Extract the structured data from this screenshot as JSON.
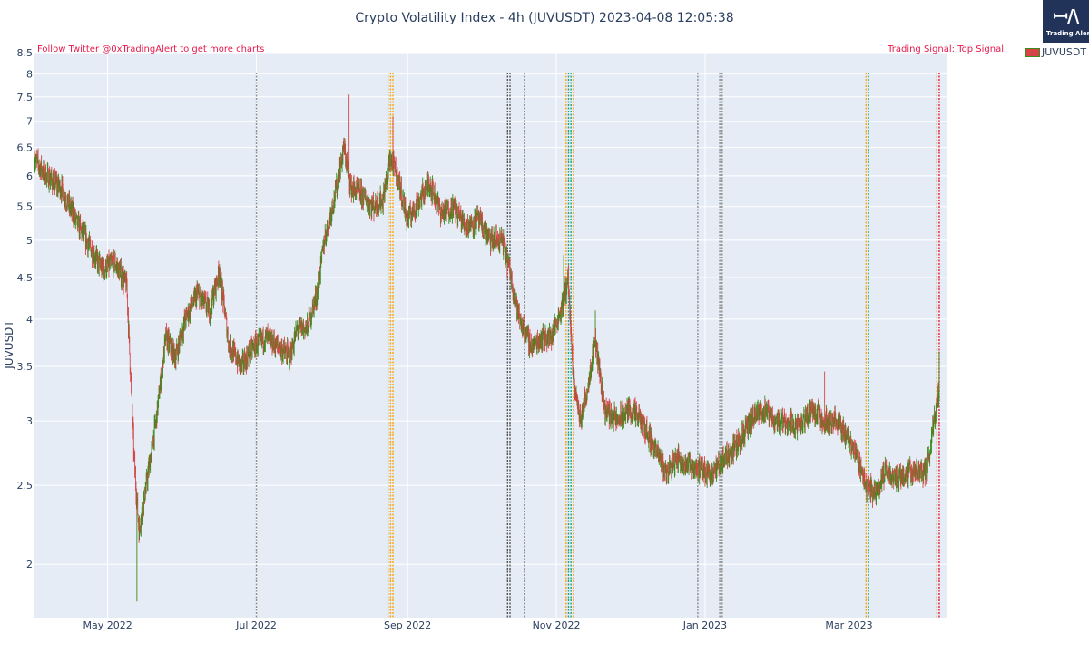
{
  "chart_data": {
    "type": "candlestick",
    "title": "Crypto Volatility Index - 4h (JUVUSDT) 2023-04-08 12:05:38",
    "ylabel": "JUVUSDT",
    "yscale": "log",
    "ylim": [
      1.72,
      8.5
    ],
    "y_ticks": [
      2,
      2.5,
      3,
      3.5,
      4,
      4.5,
      5,
      5.5,
      6,
      6.5,
      7,
      7.5,
      8,
      8.5
    ],
    "xlim": [
      "2022-04-01",
      "2023-04-10"
    ],
    "x_ticks": [
      {
        "date": "2022-05-01",
        "label": "May 2022"
      },
      {
        "date": "2022-07-01",
        "label": "Jul 2022"
      },
      {
        "date": "2022-09-01",
        "label": "Sep 2022"
      },
      {
        "date": "2022-11-01",
        "label": "Nov 2022"
      },
      {
        "date": "2023-01-01",
        "label": "Jan 2023"
      },
      {
        "date": "2023-03-01",
        "label": "Mar 2023"
      }
    ],
    "series": [
      {
        "name": "JUVUSDT",
        "price_path": [
          [
            "2022-04-01",
            6.3
          ],
          [
            "2022-04-06",
            6.0
          ],
          [
            "2022-04-12",
            5.8
          ],
          [
            "2022-04-18",
            5.3
          ],
          [
            "2022-04-24",
            4.9
          ],
          [
            "2022-04-29",
            4.6
          ],
          [
            "2022-05-04",
            4.7
          ],
          [
            "2022-05-09",
            4.4
          ],
          [
            "2022-05-12",
            2.7
          ],
          [
            "2022-05-14",
            2.2
          ],
          [
            "2022-05-17",
            2.5
          ],
          [
            "2022-05-21",
            3.0
          ],
          [
            "2022-05-25",
            3.8
          ],
          [
            "2022-05-29",
            3.6
          ],
          [
            "2022-06-02",
            4.0
          ],
          [
            "2022-06-07",
            4.3
          ],
          [
            "2022-06-12",
            4.1
          ],
          [
            "2022-06-16",
            4.6
          ],
          [
            "2022-06-20",
            3.7
          ],
          [
            "2022-06-25",
            3.5
          ],
          [
            "2022-06-30",
            3.7
          ],
          [
            "2022-07-05",
            3.8
          ],
          [
            "2022-07-10",
            3.7
          ],
          [
            "2022-07-15",
            3.6
          ],
          [
            "2022-07-18",
            3.9
          ],
          [
            "2022-07-22",
            3.9
          ],
          [
            "2022-07-26",
            4.3
          ],
          [
            "2022-07-29",
            5.0
          ],
          [
            "2022-08-03",
            5.8
          ],
          [
            "2022-08-06",
            6.5
          ],
          [
            "2022-08-09",
            5.8
          ],
          [
            "2022-08-13",
            5.7
          ],
          [
            "2022-08-18",
            5.5
          ],
          [
            "2022-08-22",
            5.6
          ],
          [
            "2022-08-25",
            6.3
          ],
          [
            "2022-08-28",
            6.0
          ],
          [
            "2022-09-01",
            5.3
          ],
          [
            "2022-09-06",
            5.6
          ],
          [
            "2022-09-10",
            5.9
          ],
          [
            "2022-09-15",
            5.4
          ],
          [
            "2022-09-20",
            5.5
          ],
          [
            "2022-09-25",
            5.2
          ],
          [
            "2022-09-30",
            5.3
          ],
          [
            "2022-10-05",
            5.0
          ],
          [
            "2022-10-10",
            5.0
          ],
          [
            "2022-10-13",
            4.6
          ],
          [
            "2022-10-17",
            4.0
          ],
          [
            "2022-10-22",
            3.7
          ],
          [
            "2022-10-26",
            3.8
          ],
          [
            "2022-10-30",
            3.8
          ],
          [
            "2022-11-03",
            4.1
          ],
          [
            "2022-11-06",
            4.5
          ],
          [
            "2022-11-08",
            3.4
          ],
          [
            "2022-11-11",
            3.0
          ],
          [
            "2022-11-14",
            3.3
          ],
          [
            "2022-11-17",
            3.8
          ],
          [
            "2022-11-21",
            3.1
          ],
          [
            "2022-11-26",
            3.0
          ],
          [
            "2022-12-01",
            3.1
          ],
          [
            "2022-12-06",
            3.0
          ],
          [
            "2022-12-11",
            2.8
          ],
          [
            "2022-12-16",
            2.6
          ],
          [
            "2022-12-21",
            2.7
          ],
          [
            "2022-12-26",
            2.65
          ],
          [
            "2023-01-01",
            2.6
          ],
          [
            "2023-01-05",
            2.6
          ],
          [
            "2023-01-09",
            2.7
          ],
          [
            "2023-01-14",
            2.8
          ],
          [
            "2023-01-20",
            3.0
          ],
          [
            "2023-01-25",
            3.1
          ],
          [
            "2023-01-30",
            3.0
          ],
          [
            "2023-02-04",
            3.0
          ],
          [
            "2023-02-09",
            2.95
          ],
          [
            "2023-02-14",
            3.1
          ],
          [
            "2023-02-19",
            3.0
          ],
          [
            "2023-02-24",
            3.0
          ],
          [
            "2023-03-01",
            2.85
          ],
          [
            "2023-03-05",
            2.7
          ],
          [
            "2023-03-08",
            2.5
          ],
          [
            "2023-03-12",
            2.45
          ],
          [
            "2023-03-16",
            2.6
          ],
          [
            "2023-03-21",
            2.55
          ],
          [
            "2023-03-26",
            2.6
          ],
          [
            "2023-03-30",
            2.6
          ],
          [
            "2023-04-02",
            2.6
          ],
          [
            "2023-04-05",
            3.0
          ],
          [
            "2023-04-07",
            3.3
          ]
        ],
        "extremes": [
          {
            "date": "2022-05-13",
            "low": 1.8
          },
          {
            "date": "2022-08-08",
            "high": 7.55
          },
          {
            "date": "2022-08-26",
            "high": 7.1
          },
          {
            "date": "2022-11-04",
            "high": 4.8
          },
          {
            "date": "2022-11-17",
            "high": 4.1
          },
          {
            "date": "2023-02-19",
            "high": 3.45
          },
          {
            "date": "2023-04-07",
            "high": 3.65
          }
        ]
      }
    ],
    "signal_lines": [
      {
        "date": "2022-07-01",
        "color": "#8c8c8c"
      },
      {
        "date": "2022-08-24",
        "color": "#ffa500"
      },
      {
        "date": "2022-08-25",
        "color": "#ffa500"
      },
      {
        "date": "2022-08-26",
        "color": "#ffa500"
      },
      {
        "date": "2022-10-12",
        "color": "#555555"
      },
      {
        "date": "2022-10-13",
        "color": "#555555"
      },
      {
        "date": "2022-10-19",
        "color": "#555555"
      },
      {
        "date": "2022-11-05",
        "color": "#ffa500"
      },
      {
        "date": "2022-11-06",
        "color": "#17a589"
      },
      {
        "date": "2022-11-07",
        "color": "#17a589"
      },
      {
        "date": "2022-11-08",
        "color": "#ffa500"
      },
      {
        "date": "2022-12-29",
        "color": "#8c8c8c"
      },
      {
        "date": "2023-01-07",
        "color": "#8c8c8c"
      },
      {
        "date": "2023-01-08",
        "color": "#8c8c8c"
      },
      {
        "date": "2023-03-08",
        "color": "#ffa500"
      },
      {
        "date": "2023-03-09",
        "color": "#17a589"
      },
      {
        "date": "2023-04-07",
        "color": "#e6194b"
      },
      {
        "date": "2023-04-06",
        "color": "#ffa500"
      }
    ],
    "annotations": {
      "left": "Follow Twitter @0xTradingAlert to get more charts",
      "right": "Trading Signal: Top Signal"
    },
    "grid": true,
    "legend": "top-right",
    "colors": {
      "up": "#3d8a1c",
      "down": "#d64545",
      "plot_bg": "#e5ecf6",
      "grid": "#ffffff",
      "text": "#2a3f5f",
      "annotation": "#e6194b"
    }
  },
  "logo": {
    "mark": "ꟷ/\\",
    "text": "Trading Alert"
  }
}
